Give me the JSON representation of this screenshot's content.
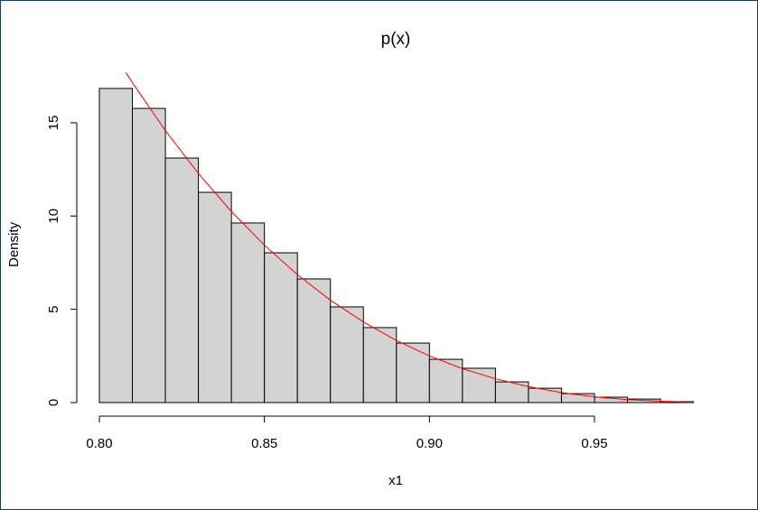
{
  "chart_data": {
    "type": "histogram",
    "title": "p(x)",
    "x_label": "x1",
    "y_label": "Density",
    "bins": [
      0.8,
      0.81,
      0.82,
      0.83,
      0.84,
      0.85,
      0.86,
      0.87,
      0.88,
      0.89,
      0.9,
      0.91,
      0.92,
      0.93,
      0.94,
      0.95,
      0.96,
      0.97,
      0.98
    ],
    "values": [
      16.84,
      15.77,
      13.11,
      11.27,
      9.63,
      8.03,
      6.63,
      5.13,
      4.02,
      3.19,
      2.32,
      1.84,
      1.11,
      0.77,
      0.48,
      0.29,
      0.19,
      0.05
    ],
    "color": "#d3d3d3",
    "curve": {
      "color": "#ff0000",
      "x": [
        0.808,
        0.81,
        0.82,
        0.83,
        0.84,
        0.85,
        0.86,
        0.87,
        0.88,
        0.89,
        0.9,
        0.91,
        0.92,
        0.93,
        0.94,
        0.95,
        0.96,
        0.97,
        0.98
      ],
      "y": [
        17.7,
        17.15,
        14.58,
        12.28,
        10.24,
        8.44,
        6.86,
        5.49,
        4.32,
        3.33,
        2.5,
        1.82,
        1.28,
        0.86,
        0.54,
        0.31,
        0.16,
        0.07,
        0.02
      ]
    },
    "xlim": [
      0.8,
      0.98
    ],
    "ylim": [
      0,
      18
    ],
    "xticks": [
      {
        "value": 0.8,
        "label": "0.80"
      },
      0.85,
      {
        "value": 0.9,
        "label": "0.90"
      },
      0.95
    ],
    "yticks": [
      0,
      5,
      10,
      15
    ]
  }
}
